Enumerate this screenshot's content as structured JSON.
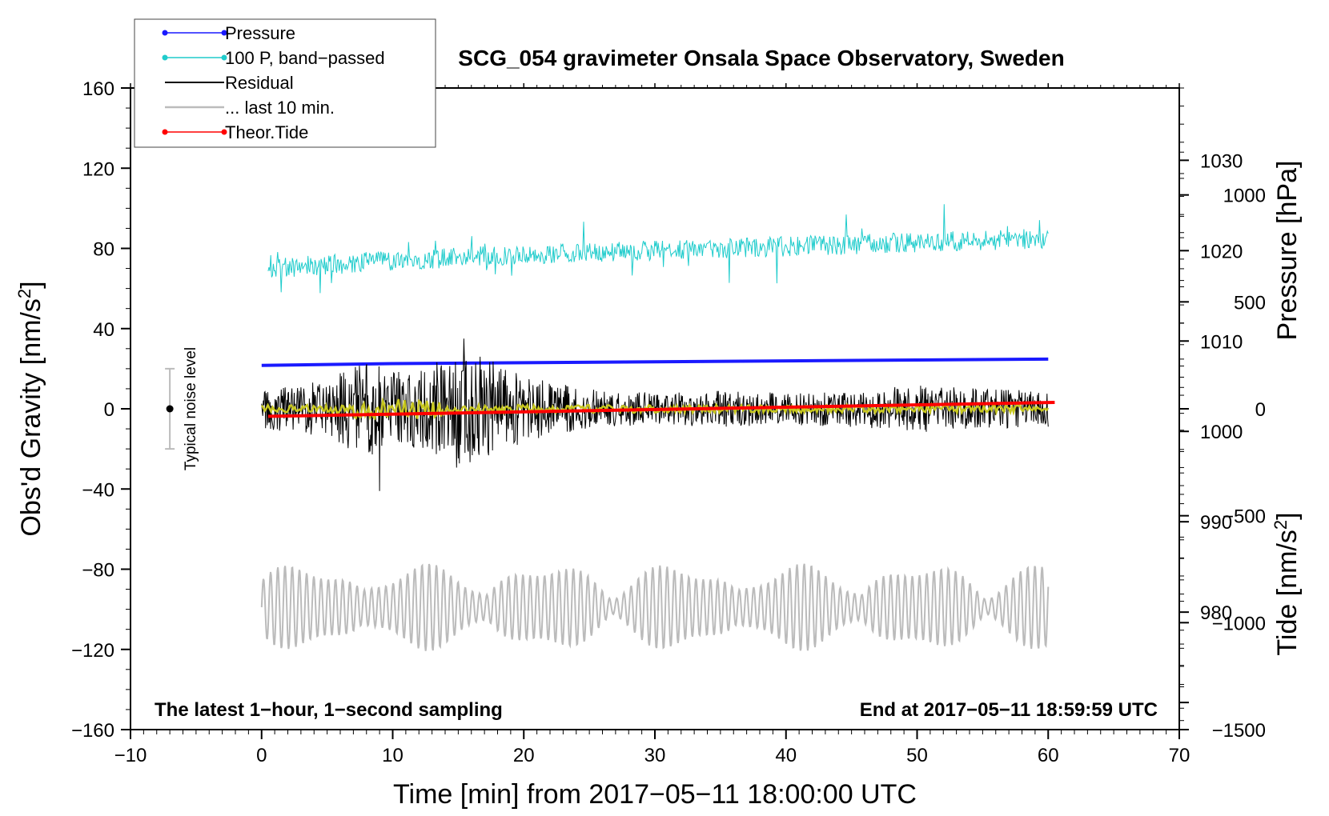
{
  "chart_data": {
    "type": "line",
    "title": "SCG_054 gravimeter Onsala Space Observatory, Sweden",
    "xlabel": "Time [min] from 2017−05−11 18:00:00 UTC",
    "ylabel_left": "Obs'd Gravity [nm/s",
    "ylabel_left_sup": "2",
    "ylabel_left_end": "]",
    "ylabel_right_pressure": "Pressure [hPa]",
    "ylabel_right_tide": "Tide [nm/s",
    "ylabel_right_tide_sup": "2",
    "ylabel_right_tide_end": "]",
    "xlim": [
      -10,
      70
    ],
    "ylim_left": [
      -160,
      160
    ],
    "pressure_axis_range": [
      967,
      1038
    ],
    "tide_axis_range": [
      -1500,
      1500
    ],
    "x_ticks": [
      {
        "v": -10,
        "label": "−10"
      },
      {
        "v": 0,
        "label": "0"
      },
      {
        "v": 10,
        "label": "10"
      },
      {
        "v": 20,
        "label": "20"
      },
      {
        "v": 30,
        "label": "30"
      },
      {
        "v": 40,
        "label": "40"
      },
      {
        "v": 50,
        "label": "50"
      },
      {
        "v": 60,
        "label": "60"
      },
      {
        "v": 70,
        "label": "70"
      }
    ],
    "y_ticks_left": [
      {
        "v": 160,
        "label": "160"
      },
      {
        "v": 120,
        "label": "120"
      },
      {
        "v": 80,
        "label": "80"
      },
      {
        "v": 40,
        "label": "40"
      },
      {
        "v": 0,
        "label": "0"
      },
      {
        "v": -40,
        "label": "−40"
      },
      {
        "v": -80,
        "label": "−80"
      },
      {
        "v": -120,
        "label": "−120"
      },
      {
        "v": -160,
        "label": "−160"
      }
    ],
    "pressure_ticks": [
      {
        "v": 1030,
        "label": "1030"
      },
      {
        "v": 1020,
        "label": "1020"
      },
      {
        "v": 1010,
        "label": "1010"
      },
      {
        "v": 1000,
        "label": "1000"
      },
      {
        "v": 990,
        "label": "990"
      },
      {
        "v": 980,
        "label": "980"
      }
    ],
    "tide_ticks": [
      {
        "v": 1000,
        "label": "1000"
      },
      {
        "v": 500,
        "label": "500"
      },
      {
        "v": 0,
        "label": "0"
      },
      {
        "v": -500,
        "label": "−500"
      },
      {
        "v": -1000,
        "label": "−1000"
      },
      {
        "v": -1500,
        "label": "−1500"
      }
    ],
    "legend": [
      {
        "name": "Pressure",
        "color": "#1a1aff",
        "marker": true,
        "style": "line"
      },
      {
        "name": "100 P, band−passed",
        "color": "#20cccc",
        "marker": true,
        "style": "line"
      },
      {
        "name": "Residual",
        "color": "#000000",
        "marker": false,
        "style": "line"
      },
      {
        "name": "... last 10 min.",
        "color": "#bbbbbb",
        "marker": false,
        "style": "line"
      },
      {
        "name": "Theor.Tide",
        "color": "#ff0000",
        "marker": true,
        "style": "line"
      }
    ],
    "series": [
      {
        "name": "Pressure",
        "axis": "pressure",
        "color": "#1a1aff",
        "points": [
          [
            0,
            1007.3
          ],
          [
            10,
            1007.5
          ],
          [
            20,
            1007.6
          ],
          [
            30,
            1007.7
          ],
          [
            40,
            1007.8
          ],
          [
            50,
            1007.9
          ],
          [
            60,
            1008.0
          ]
        ]
      },
      {
        "name": "100 P, band−passed",
        "axis": "left",
        "color": "#20cccc",
        "trend": [
          [
            0.5,
            70
          ],
          [
            10,
            74
          ],
          [
            20,
            77
          ],
          [
            30,
            79
          ],
          [
            40,
            81
          ],
          [
            50,
            83
          ],
          [
            60,
            85
          ]
        ],
        "noise_amplitude": 5
      },
      {
        "name": "Residual",
        "axis": "left",
        "color": "#000000",
        "baseline": 0,
        "amplitude_profile": [
          [
            0,
            10
          ],
          [
            5,
            14
          ],
          [
            8,
            26
          ],
          [
            10,
            18
          ],
          [
            12,
            20
          ],
          [
            15,
            30
          ],
          [
            18,
            24
          ],
          [
            20,
            16
          ],
          [
            25,
            10
          ],
          [
            30,
            8
          ],
          [
            35,
            9
          ],
          [
            40,
            8
          ],
          [
            45,
            9
          ],
          [
            50,
            12
          ],
          [
            55,
            10
          ],
          [
            60,
            9
          ]
        ],
        "extremes": {
          "max": 35,
          "min": -41
        }
      },
      {
        "name": "Residual smoothed",
        "axis": "left",
        "color": "#c8c820",
        "baseline": 0,
        "amplitude": 2
      },
      {
        "name": "... last 10 min.",
        "axis": "left",
        "color": "#bbbbbb",
        "baseline": -99,
        "amplitude_range": [
          -121,
          -78
        ],
        "period_min": 0.55
      },
      {
        "name": "Theor.Tide",
        "axis": "tide",
        "color": "#ff0000",
        "points": [
          [
            0.5,
            -35
          ],
          [
            60.5,
            30
          ]
        ]
      }
    ],
    "noise_bar": {
      "label": "Typical noise level",
      "x": -7,
      "center": 0,
      "low": -20,
      "high": 20
    },
    "annotations": {
      "left_note": "The latest 1−hour, 1−second sampling",
      "right_note": "End at 2017−05−11 18:59:59 UTC"
    }
  }
}
